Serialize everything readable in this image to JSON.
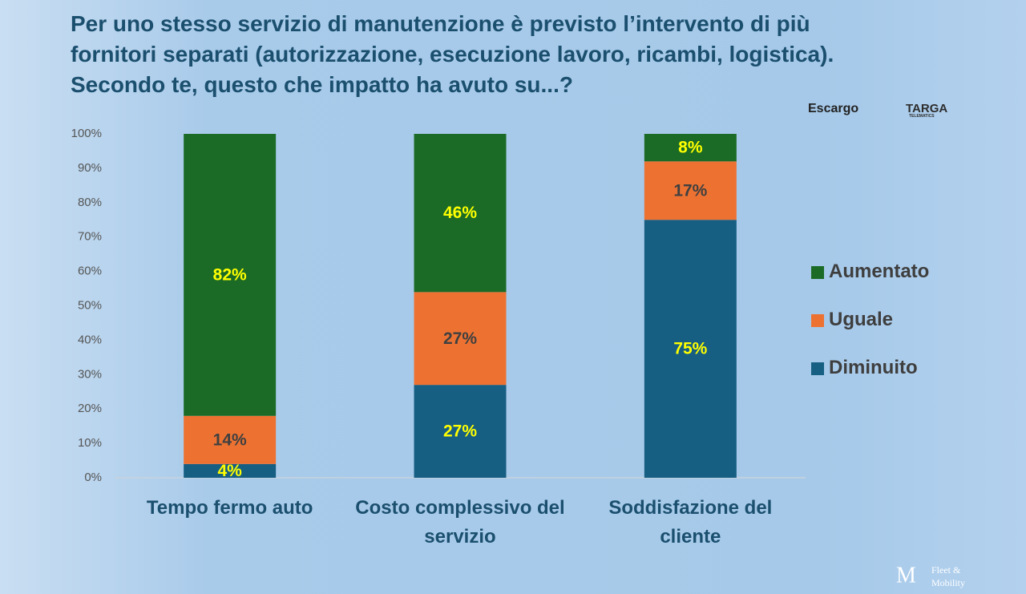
{
  "header": {
    "title": [
      "Per uno stesso servizio di manutenzione è previsto l’intervento di più",
      "fornitori separati (autorizzazione, esecuzione lavoro, ricambi, logistica).",
      "Secondo te, questo che impatto ha avuto su...?"
    ],
    "logos": [
      "Escargo",
      "TARGA",
      "TELEMATICS",
      "Fleet &",
      "Mobility"
    ]
  },
  "chart_data": {
    "type": "stacked_bar",
    "categories": [
      "Tempo fermo auto",
      "Costo complessivo del servizio",
      "Soddisfazione del cliente"
    ],
    "series": [
      {
        "name": "Diminuito",
        "color": "#165e82",
        "label_color": "#ffff00",
        "values": [
          4,
          27,
          75
        ],
        "value_labels": [
          "4%",
          "27%",
          "75%"
        ]
      },
      {
        "name": "Uguale",
        "color": "#ed7232",
        "label_color": "#404040",
        "values": [
          14,
          27,
          17
        ],
        "value_labels": [
          "14%",
          "27%",
          "17%"
        ]
      },
      {
        "name": "Aumentato",
        "color": "#1b6b26",
        "label_color": "#ffff00",
        "values": [
          82,
          46,
          8
        ],
        "value_labels": [
          "82%",
          "46%",
          "8%"
        ]
      }
    ],
    "ylim": [
      0,
      100
    ],
    "yticks": [
      {
        "value": 0,
        "label": "0%"
      },
      {
        "value": 10,
        "label": "10%"
      },
      {
        "value": 20,
        "label": "20%"
      },
      {
        "value": 30,
        "label": "30%"
      },
      {
        "value": 40,
        "label": "40%"
      },
      {
        "value": 50,
        "label": "50%"
      },
      {
        "value": 60,
        "label": "60%"
      },
      {
        "value": 70,
        "label": "70%"
      },
      {
        "value": 80,
        "label": "80%"
      },
      {
        "value": 90,
        "label": "90%"
      },
      {
        "value": 100,
        "label": "100%"
      }
    ],
    "grid": false,
    "legend": "right"
  }
}
